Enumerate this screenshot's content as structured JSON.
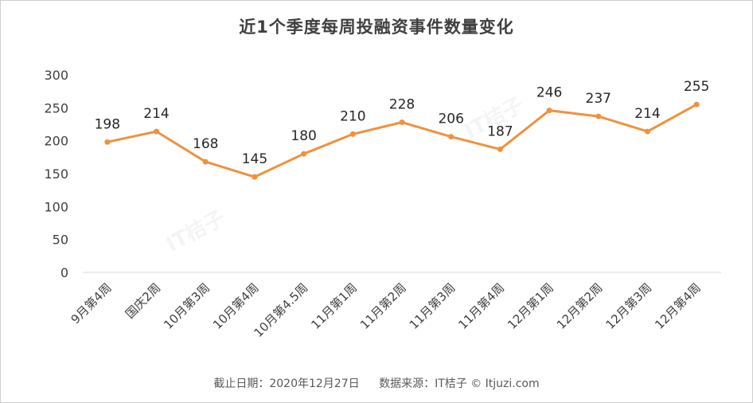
{
  "chart_data": {
    "type": "line",
    "title": "近1个季度每周投融资事件数量变化",
    "categories": [
      "9月第4周",
      "国庆2周",
      "10月第3周",
      "10月第4周",
      "10月第4.5周",
      "11月第1周",
      "11月第2周",
      "11月第3周",
      "11月第4周",
      "12月第1周",
      "12月第2周",
      "12月第3周",
      "12月第4周"
    ],
    "series": [
      {
        "values": [
          198,
          214,
          168,
          145,
          180,
          210,
          228,
          206,
          187,
          246,
          237,
          214,
          255
        ]
      }
    ],
    "xlabel": "",
    "ylabel": "",
    "ylim": [
      0,
      300
    ],
    "yticks": [
      0,
      50,
      100,
      150,
      200,
      250,
      300
    ],
    "grid": false,
    "legend": "none",
    "line_color": "#F0913E"
  },
  "footer": {
    "date_text": "截止日期：2020年12月27日",
    "source_text": "数据来源：IT桔子 © Itjuzi.com"
  },
  "watermark": {
    "brand": "IT桔子",
    "domain": "itjuzi.com"
  }
}
